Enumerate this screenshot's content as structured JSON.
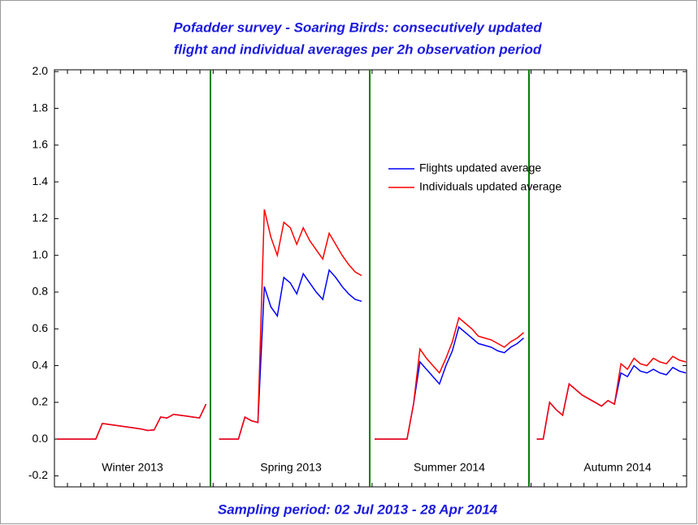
{
  "chart_data": {
    "type": "line",
    "title": [
      "Pofadder survey - Soaring Birds: consecutively updated",
      "flight and individual averages per 2h observation period"
    ],
    "xlabel": "Sampling period: 02 Jul 2013 - 28 Apr 2014",
    "annotations": [
      "Winter 2013",
      "Spring 2013",
      "Summer 2014",
      "Autumn 2014"
    ],
    "legend": "upper right",
    "ylim": [
      -0.26,
      2.01
    ],
    "yticks": [
      {
        "value": -0.2,
        "label": "-0.2"
      },
      {
        "value": 0,
        "label": "0.0"
      },
      {
        "value": 0.2,
        "label": "0.2"
      },
      {
        "value": 0.4,
        "label": "0.4"
      },
      {
        "value": 0.6,
        "label": "0.6"
      },
      {
        "value": 0.8,
        "label": "0.8"
      },
      {
        "value": 1,
        "label": "1.0"
      },
      {
        "value": 1.2,
        "label": "1.2"
      },
      {
        "value": 1.4,
        "label": "1.4"
      },
      {
        "value": 1.6,
        "label": "1.6"
      },
      {
        "value": 1.8,
        "label": "1.8"
      },
      {
        "value": 2,
        "label": "2.0"
      }
    ],
    "series": [
      {
        "name": "Flights updated average",
        "color": "#0000ff",
        "values": [
          0,
          0,
          0,
          0,
          0,
          0,
          0,
          0.085,
          0.08,
          0.075,
          0.07,
          0.065,
          0.06,
          0.055,
          0.047,
          0.05,
          0.12,
          0.115,
          0.135,
          0.13,
          0.125,
          0.12,
          0.115,
          0.19,
          null,
          0,
          0,
          0,
          0,
          0.12,
          0.1,
          0.09,
          0.83,
          0.72,
          0.67,
          0.88,
          0.85,
          0.79,
          0.9,
          0.85,
          0.8,
          0.76,
          0.92,
          0.88,
          0.83,
          0.79,
          0.76,
          0.75,
          null,
          0,
          0,
          0,
          0,
          0,
          0,
          0.19,
          0.42,
          0.38,
          0.34,
          0.3,
          0.4,
          0.48,
          0.61,
          0.58,
          0.55,
          0.52,
          0.51,
          0.5,
          0.48,
          0.47,
          0.5,
          0.52,
          0.55,
          null,
          0,
          0,
          0.2,
          0.16,
          0.13,
          0.3,
          0.27,
          0.24,
          0.22,
          0.2,
          0.18,
          0.21,
          0.19,
          0.36,
          0.34,
          0.4,
          0.37,
          0.36,
          0.38,
          0.36,
          0.35,
          0.39,
          0.37,
          0.36
        ]
      },
      {
        "name": "Individuals updated average",
        "color": "#ff0000",
        "values": [
          0,
          0,
          0,
          0,
          0,
          0,
          0,
          0.085,
          0.08,
          0.075,
          0.07,
          0.065,
          0.06,
          0.055,
          0.047,
          0.05,
          0.12,
          0.115,
          0.135,
          0.13,
          0.125,
          0.12,
          0.115,
          0.19,
          null,
          0,
          0,
          0,
          0,
          0.12,
          0.1,
          0.09,
          1.25,
          1.1,
          1.0,
          1.18,
          1.15,
          1.06,
          1.15,
          1.08,
          1.03,
          0.98,
          1.12,
          1.06,
          1.0,
          0.95,
          0.91,
          0.89,
          null,
          0,
          0,
          0,
          0,
          0,
          0,
          0.19,
          0.49,
          0.44,
          0.4,
          0.36,
          0.44,
          0.53,
          0.66,
          0.63,
          0.6,
          0.56,
          0.55,
          0.54,
          0.52,
          0.5,
          0.53,
          0.55,
          0.58,
          null,
          0,
          0,
          0.2,
          0.16,
          0.13,
          0.3,
          0.27,
          0.24,
          0.22,
          0.2,
          0.18,
          0.21,
          0.19,
          0.41,
          0.38,
          0.44,
          0.41,
          0.4,
          0.44,
          0.42,
          0.41,
          0.45,
          0.43,
          0.42
        ]
      }
    ]
  }
}
